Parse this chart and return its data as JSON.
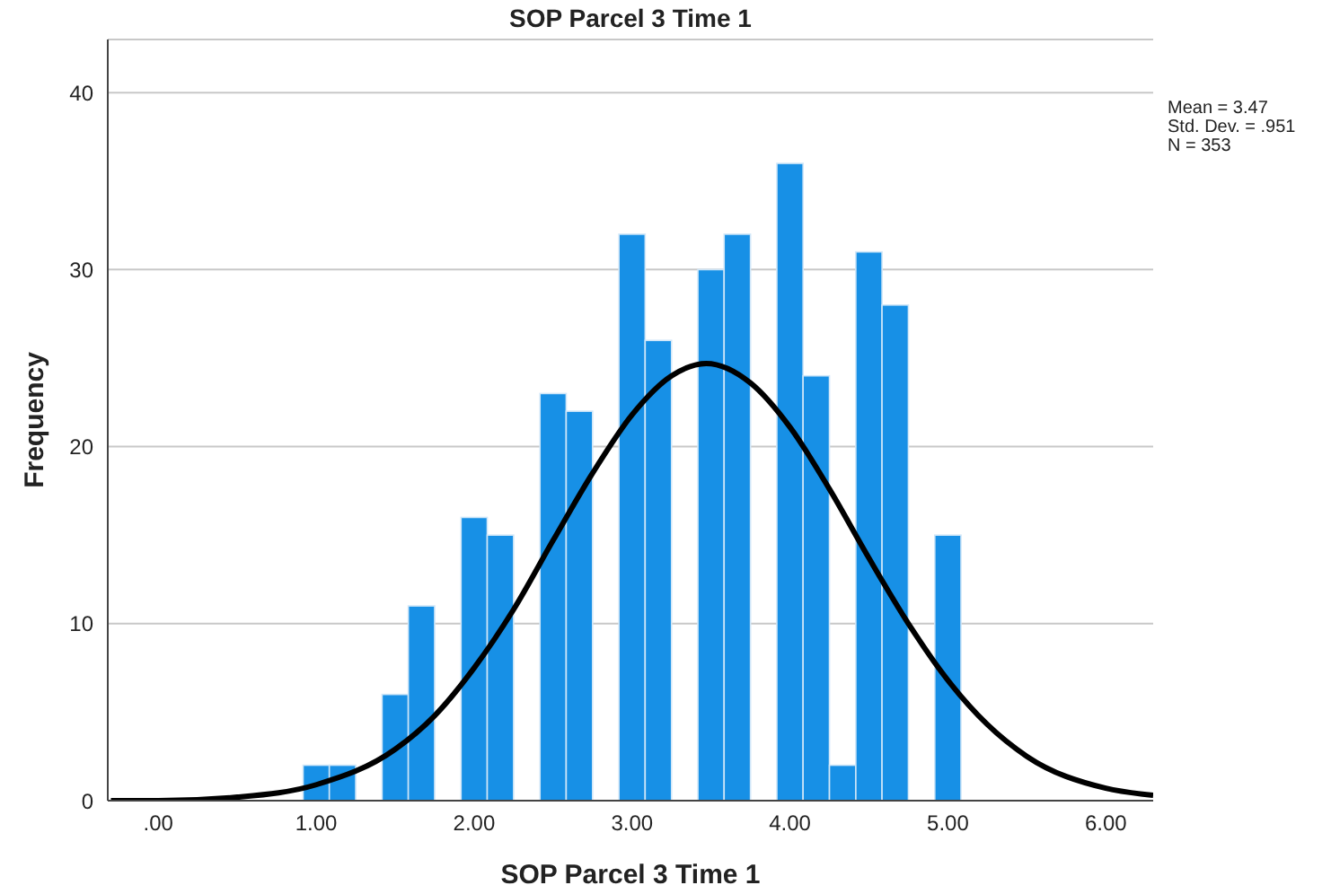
{
  "chart_data": {
    "type": "histogram",
    "title": "SOP Parcel 3 Time 1",
    "xlabel": "SOP Parcel 3 Time 1",
    "ylabel": "Frequency",
    "bins": [
      0.917,
      1.083,
      1.25,
      1.417,
      1.583,
      1.75,
      1.917,
      2.083,
      2.25,
      2.417,
      2.583,
      2.75,
      2.917,
      3.083,
      3.25,
      3.417,
      3.583,
      3.75,
      3.917,
      4.083,
      4.25,
      4.417,
      4.583,
      4.75,
      4.917,
      5.083
    ],
    "values": [
      2,
      2,
      0,
      6,
      11,
      0,
      16,
      15,
      0,
      23,
      22,
      0,
      32,
      26,
      0,
      30,
      32,
      0,
      36,
      24,
      2,
      31,
      28,
      0,
      15
    ],
    "color": "#1790e6",
    "series": [
      {
        "type": "line",
        "color": "#000000",
        "x": [
          -0.3,
          0,
          0.5,
          1,
          1.5,
          1.75,
          2,
          2.25,
          2.5,
          2.75,
          3,
          3.25,
          3.47,
          3.75,
          4,
          4.25,
          4.5,
          4.75,
          5,
          5.25,
          5.5,
          6,
          6.3
        ],
        "values": [
          0,
          0,
          0.2,
          0.9,
          2.9,
          4.8,
          7.5,
          10.8,
          14.7,
          18.5,
          21.8,
          24,
          24.7,
          23.6,
          21.1,
          17.6,
          13.7,
          10,
          6.8,
          4.3,
          2.5,
          0.7,
          0.3
        ]
      }
    ],
    "xlim": [
      -0.32,
      6.3
    ],
    "xticks": [
      {
        "value": 0,
        "label": ".00"
      },
      {
        "value": 1,
        "label": "1.00"
      },
      {
        "value": 2,
        "label": "2.00"
      },
      {
        "value": 3,
        "label": "3.00"
      },
      {
        "value": 4,
        "label": "4.00"
      },
      {
        "value": 5,
        "label": "5.00"
      },
      {
        "value": 6,
        "label": "6.00"
      }
    ],
    "ylim": [
      0,
      43
    ],
    "yticks": [
      0,
      10,
      20,
      30,
      40
    ],
    "grid": "y",
    "legend": false,
    "annotations": [
      "Mean = 3.47",
      "Std. Dev. = .951",
      "N = 353"
    ]
  }
}
